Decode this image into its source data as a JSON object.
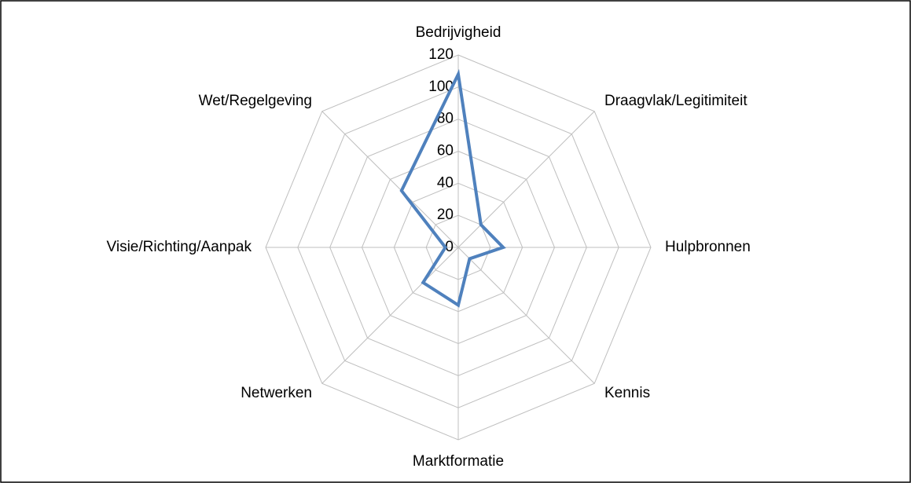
{
  "chart_data": {
    "type": "radar",
    "categories": [
      "Bedrijvigheid",
      "Draagvlak/Legitimiteit",
      "Hulpbronnen",
      "Kennis",
      "Marktformatie",
      "Netwerken",
      "Visie/Richting/Aanpak",
      "Wet/Regelgeving"
    ],
    "values": [
      108,
      20,
      28,
      10,
      36,
      31,
      8,
      50
    ],
    "color": "#4f81bd",
    "ylim": [
      0,
      120
    ],
    "yticks": [
      0,
      20,
      40,
      60,
      80,
      100,
      120
    ],
    "grid": true
  }
}
